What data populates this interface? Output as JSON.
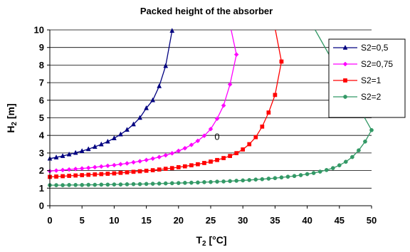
{
  "chart_data": {
    "type": "line",
    "title": "Packed height of the absorber",
    "xlabel": "T2 [°C]",
    "ylabel": "H2 [m]",
    "xlim": [
      0,
      50
    ],
    "ylim": [
      0,
      10
    ],
    "x_ticks": [
      0,
      5,
      10,
      15,
      20,
      25,
      30,
      35,
      40,
      45,
      50
    ],
    "y_ticks": [
      0,
      1,
      2,
      3,
      4,
      5,
      6,
      7,
      8,
      9,
      10
    ],
    "grid": "horizontal",
    "legend_position": "top-right",
    "annotations": [
      {
        "text": "0",
        "x": 26,
        "y": 3.75
      }
    ],
    "series": [
      {
        "name": "S2=0,5",
        "color": "#000080",
        "marker": "triangle",
        "x": [
          0,
          1,
          2,
          3,
          4,
          5,
          6,
          7,
          8,
          9,
          10,
          11,
          12,
          13,
          14,
          15,
          16,
          17,
          18,
          19
        ],
        "y": [
          2.68,
          2.75,
          2.83,
          2.92,
          3.01,
          3.11,
          3.22,
          3.35,
          3.49,
          3.65,
          3.84,
          4.06,
          4.32,
          4.63,
          5.0,
          5.55,
          6.0,
          6.8,
          7.95,
          9.95
        ]
      },
      {
        "name": "S2=0,75",
        "color": "#ff00ff",
        "marker": "diamond",
        "x": [
          0,
          1,
          2,
          3,
          4,
          5,
          6,
          7,
          8,
          9,
          10,
          11,
          12,
          13,
          14,
          15,
          16,
          17,
          18,
          19,
          20,
          21,
          22,
          23,
          24,
          25,
          26,
          27,
          28,
          29
        ],
        "y": [
          1.97,
          2.0,
          2.03,
          2.06,
          2.09,
          2.12,
          2.15,
          2.19,
          2.23,
          2.27,
          2.31,
          2.36,
          2.41,
          2.47,
          2.53,
          2.6,
          2.68,
          2.77,
          2.87,
          2.98,
          3.12,
          3.27,
          3.46,
          3.69,
          3.98,
          4.36,
          4.95,
          5.7,
          6.9,
          8.6
        ]
      },
      {
        "name": "S2=1",
        "color": "#ff0000",
        "marker": "square",
        "x": [
          0,
          1,
          2,
          3,
          4,
          5,
          6,
          7,
          8,
          9,
          10,
          11,
          12,
          13,
          14,
          15,
          16,
          17,
          18,
          19,
          20,
          21,
          22,
          23,
          24,
          25,
          26,
          27,
          28,
          29,
          30,
          31,
          32,
          33,
          34,
          35,
          36
        ],
        "y": [
          1.64,
          1.66,
          1.68,
          1.7,
          1.72,
          1.74,
          1.76,
          1.78,
          1.8,
          1.82,
          1.84,
          1.87,
          1.9,
          1.93,
          1.96,
          1.99,
          2.02,
          2.06,
          2.1,
          2.14,
          2.19,
          2.24,
          2.3,
          2.36,
          2.43,
          2.51,
          2.6,
          2.71,
          2.83,
          2.99,
          3.2,
          3.5,
          3.9,
          4.5,
          5.3,
          6.3,
          8.2
        ]
      },
      {
        "name": "S2=2",
        "color": "#339966",
        "marker": "circle",
        "x": [
          0,
          1,
          2,
          3,
          4,
          5,
          6,
          7,
          8,
          9,
          10,
          11,
          12,
          13,
          14,
          15,
          16,
          17,
          18,
          19,
          20,
          21,
          22,
          23,
          24,
          25,
          26,
          27,
          28,
          29,
          30,
          31,
          32,
          33,
          34,
          35,
          36,
          37,
          38,
          39,
          40,
          41,
          42,
          43,
          44,
          45,
          46,
          47,
          48,
          49,
          50
        ],
        "y": [
          1.17,
          1.17,
          1.17,
          1.18,
          1.18,
          1.18,
          1.19,
          1.19,
          1.2,
          1.2,
          1.21,
          1.21,
          1.22,
          1.23,
          1.23,
          1.24,
          1.25,
          1.26,
          1.27,
          1.28,
          1.29,
          1.3,
          1.31,
          1.32,
          1.34,
          1.35,
          1.37,
          1.38,
          1.4,
          1.42,
          1.44,
          1.46,
          1.49,
          1.51,
          1.54,
          1.57,
          1.61,
          1.65,
          1.69,
          1.74,
          1.8,
          1.86,
          1.94,
          2.03,
          2.14,
          2.3,
          2.5,
          2.77,
          3.15,
          3.65,
          4.3
        ]
      }
    ]
  }
}
